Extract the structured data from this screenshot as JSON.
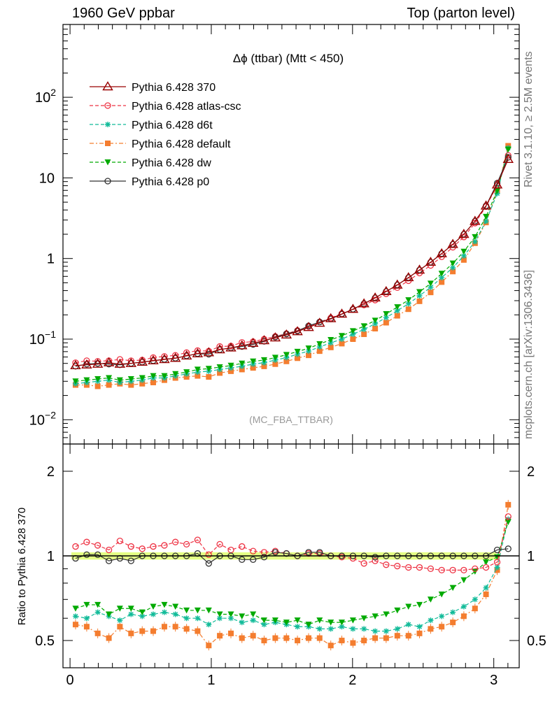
{
  "header": {
    "left": "1960 GeV ppbar",
    "right": "Top (parton level)"
  },
  "side_text": {
    "rivet": "Rivet 3.1.10, ≥ 2.5M events",
    "mcplots": "mcplots.cern.ch [arXiv:1306.3436]"
  },
  "chart_data": [
    {
      "type": "line",
      "title": "Δϕ (ttbar) (Mtt < 450)",
      "watermark": "(MC_FBA_TTBAR)",
      "xlabel": "",
      "ylabel": "",
      "yscale": "log",
      "xlim": [
        -0.05,
        3.18
      ],
      "ylim": [
        0.005,
        800
      ],
      "xticks": [
        "0",
        "1",
        "2",
        "3"
      ],
      "yticks": [
        "10⁻²",
        "10⁻¹",
        "1",
        "10",
        "10²"
      ],
      "legend_position": "top-left",
      "x": [
        0.039,
        0.118,
        0.196,
        0.275,
        0.353,
        0.432,
        0.511,
        0.589,
        0.668,
        0.746,
        0.825,
        0.903,
        0.982,
        1.06,
        1.139,
        1.217,
        1.296,
        1.374,
        1.453,
        1.532,
        1.61,
        1.689,
        1.767,
        1.846,
        1.924,
        2.003,
        2.081,
        2.16,
        2.238,
        2.317,
        2.396,
        2.474,
        2.553,
        2.631,
        2.71,
        2.788,
        2.867,
        2.945,
        3.024,
        3.102
      ],
      "series": [
        {
          "name": "Pythia 6.428 370",
          "color": "#990000",
          "marker": "triangle-open",
          "dash": "",
          "values": [
            0.047,
            0.048,
            0.049,
            0.051,
            0.049,
            0.05,
            0.052,
            0.054,
            0.056,
            0.058,
            0.062,
            0.066,
            0.068,
            0.074,
            0.078,
            0.083,
            0.089,
            0.096,
            0.104,
            0.113,
            0.124,
            0.14,
            0.158,
            0.18,
            0.205,
            0.235,
            0.275,
            0.325,
            0.39,
            0.47,
            0.58,
            0.72,
            0.9,
            1.15,
            1.5,
            2.0,
            2.9,
            4.5,
            8.2,
            17.0
          ]
        },
        {
          "name": "Pythia 6.428 atlas-csc",
          "color": "#ee3344",
          "marker": "circle-open",
          "dash": "5,3",
          "values": [
            0.051,
            0.054,
            0.053,
            0.054,
            0.056,
            0.054,
            0.055,
            0.059,
            0.061,
            0.063,
            0.068,
            0.072,
            0.071,
            0.081,
            0.082,
            0.091,
            0.093,
            0.1,
            0.108,
            0.117,
            0.128,
            0.143,
            0.163,
            0.183,
            0.207,
            0.232,
            0.265,
            0.305,
            0.365,
            0.435,
            0.53,
            0.66,
            0.82,
            1.05,
            1.38,
            1.85,
            2.75,
            4.4,
            8.1,
            19.0
          ]
        },
        {
          "name": "Pythia 6.428 d6t",
          "color": "#11bb99",
          "marker": "star",
          "dash": "5,3",
          "values": [
            0.028,
            0.029,
            0.03,
            0.031,
            0.029,
            0.03,
            0.031,
            0.033,
            0.033,
            0.035,
            0.037,
            0.039,
            0.04,
            0.042,
            0.044,
            0.046,
            0.049,
            0.051,
            0.055,
            0.059,
            0.065,
            0.071,
            0.08,
            0.09,
            0.1,
            0.115,
            0.132,
            0.155,
            0.185,
            0.225,
            0.275,
            0.345,
            0.44,
            0.58,
            0.77,
            1.08,
            1.62,
            2.9,
            6.4,
            23.5
          ]
        },
        {
          "name": "Pythia 6.428 default",
          "color": "#f47d2f",
          "marker": "square",
          "dash": "6,3,2,3",
          "values": [
            0.027,
            0.027,
            0.026,
            0.027,
            0.028,
            0.027,
            0.028,
            0.029,
            0.031,
            0.033,
            0.034,
            0.035,
            0.034,
            0.038,
            0.04,
            0.042,
            0.044,
            0.046,
            0.049,
            0.053,
            0.058,
            0.063,
            0.071,
            0.079,
            0.088,
            0.1,
            0.115,
            0.135,
            0.16,
            0.195,
            0.235,
            0.295,
            0.38,
            0.51,
            0.69,
            0.96,
            1.55,
            2.8,
            6.8,
            25.0
          ]
        },
        {
          "name": "Pythia 6.428 dw",
          "color": "#00aa00",
          "marker": "triangle-down",
          "dash": "5,3",
          "values": [
            0.03,
            0.031,
            0.032,
            0.033,
            0.031,
            0.032,
            0.033,
            0.035,
            0.035,
            0.037,
            0.039,
            0.042,
            0.043,
            0.045,
            0.047,
            0.05,
            0.053,
            0.055,
            0.059,
            0.064,
            0.07,
            0.077,
            0.087,
            0.098,
            0.11,
            0.126,
            0.145,
            0.17,
            0.205,
            0.25,
            0.305,
            0.385,
            0.49,
            0.65,
            0.87,
            1.22,
            1.85,
            3.3,
            6.9,
            22.5
          ]
        },
        {
          "name": "Pythia 6.428 p0",
          "color": "#333333",
          "marker": "circle-open",
          "dash": "",
          "values": [
            0.046,
            0.049,
            0.05,
            0.049,
            0.048,
            0.05,
            0.052,
            0.054,
            0.056,
            0.058,
            0.062,
            0.066,
            0.065,
            0.074,
            0.078,
            0.081,
            0.086,
            0.094,
            0.106,
            0.116,
            0.126,
            0.146,
            0.163,
            0.178,
            0.204,
            0.235,
            0.275,
            0.325,
            0.39,
            0.47,
            0.58,
            0.72,
            0.9,
            1.15,
            1.5,
            2.0,
            2.9,
            4.5,
            8.6,
            18.0
          ]
        }
      ]
    },
    {
      "type": "line",
      "title": "",
      "xlabel": "",
      "ylabel": "Ratio to Pythia 6.428 370",
      "yscale": "log",
      "xlim": [
        -0.05,
        3.18
      ],
      "ylim": [
        0.4,
        2.5
      ],
      "xticks": [
        "0",
        "1",
        "2",
        "3"
      ],
      "yticks": [
        "0.5",
        "1",
        "2"
      ],
      "reference_band": [
        0.97,
        1.03
      ],
      "x": [
        0.039,
        0.118,
        0.196,
        0.275,
        0.353,
        0.432,
        0.511,
        0.589,
        0.668,
        0.746,
        0.825,
        0.903,
        0.982,
        1.06,
        1.139,
        1.217,
        1.296,
        1.374,
        1.453,
        1.532,
        1.61,
        1.689,
        1.767,
        1.846,
        1.924,
        2.003,
        2.081,
        2.16,
        2.238,
        2.317,
        2.396,
        2.474,
        2.553,
        2.631,
        2.71,
        2.788,
        2.867,
        2.945,
        3.024,
        3.102
      ],
      "series": [
        {
          "name": "Pythia 6.428 atlas-csc",
          "color": "#ee3344",
          "marker": "circle-open",
          "dash": "5,3",
          "values": [
            1.08,
            1.12,
            1.09,
            1.05,
            1.13,
            1.08,
            1.06,
            1.08,
            1.09,
            1.12,
            1.1,
            1.14,
            1.01,
            1.1,
            1.05,
            1.08,
            1.04,
            1.03,
            1.04,
            1.02,
            1.0,
            1.02,
            1.02,
            1.0,
            0.99,
            0.98,
            0.94,
            0.96,
            0.93,
            0.92,
            0.91,
            0.91,
            0.9,
            0.89,
            0.89,
            0.89,
            0.9,
            0.91,
            0.95,
            1.38
          ]
        },
        {
          "name": "Pythia 6.428 d6t",
          "color": "#11bb99",
          "marker": "star",
          "dash": "5,3",
          "values": [
            0.61,
            0.6,
            0.63,
            0.61,
            0.59,
            0.62,
            0.61,
            0.62,
            0.63,
            0.62,
            0.6,
            0.6,
            0.57,
            0.6,
            0.6,
            0.58,
            0.59,
            0.57,
            0.58,
            0.57,
            0.56,
            0.56,
            0.55,
            0.55,
            0.56,
            0.55,
            0.55,
            0.54,
            0.54,
            0.55,
            0.57,
            0.56,
            0.59,
            0.61,
            0.63,
            0.66,
            0.7,
            0.77,
            0.91,
            1.35
          ]
        },
        {
          "name": "Pythia 6.428 default",
          "color": "#f47d2f",
          "marker": "square",
          "dash": "6,3,2,3",
          "values": [
            0.57,
            0.56,
            0.53,
            0.51,
            0.56,
            0.53,
            0.54,
            0.54,
            0.56,
            0.56,
            0.55,
            0.54,
            0.48,
            0.52,
            0.53,
            0.51,
            0.52,
            0.5,
            0.51,
            0.51,
            0.5,
            0.51,
            0.51,
            0.48,
            0.5,
            0.49,
            0.5,
            0.51,
            0.51,
            0.52,
            0.52,
            0.53,
            0.55,
            0.56,
            0.58,
            0.61,
            0.65,
            0.73,
            0.89,
            1.52
          ]
        },
        {
          "name": "Pythia 6.428 dw",
          "color": "#00aa00",
          "marker": "triangle-down",
          "dash": "5,3",
          "values": [
            0.65,
            0.67,
            0.67,
            0.62,
            0.65,
            0.65,
            0.63,
            0.66,
            0.67,
            0.66,
            0.64,
            0.64,
            0.64,
            0.62,
            0.62,
            0.61,
            0.62,
            0.59,
            0.59,
            0.58,
            0.59,
            0.57,
            0.59,
            0.58,
            0.58,
            0.59,
            0.6,
            0.61,
            0.62,
            0.64,
            0.66,
            0.67,
            0.7,
            0.73,
            0.77,
            0.82,
            0.88,
            0.95,
            0.99,
            1.32
          ]
        },
        {
          "name": "Pythia 6.428 p0",
          "color": "#333333",
          "marker": "circle-open",
          "dash": "",
          "values": [
            0.98,
            1.01,
            1.01,
            0.96,
            0.98,
            0.96,
            1.0,
            1.0,
            1.0,
            1.0,
            1.0,
            1.02,
            0.94,
            1.0,
            1.0,
            0.97,
            0.97,
            0.99,
            1.03,
            1.02,
            1.0,
            1.03,
            1.03,
            1.0,
            1.0,
            1.0,
            1.0,
            0.99,
            1.0,
            1.0,
            1.0,
            1.0,
            1.0,
            1.0,
            1.0,
            1.0,
            1.0,
            1.0,
            1.05,
            1.06
          ]
        },
        {
          "name": "Pythia 6.428 370",
          "color": "#990000",
          "marker": "none",
          "dash": "",
          "values": [
            1,
            1,
            1,
            1,
            1,
            1,
            1,
            1,
            1,
            1,
            1,
            1,
            1,
            1,
            1,
            1,
            1,
            1,
            1,
            1,
            1,
            1,
            1,
            1,
            1,
            1,
            1,
            1,
            1,
            1,
            1,
            1,
            1,
            1,
            1,
            1,
            1,
            1,
            1,
            1
          ]
        }
      ]
    }
  ]
}
